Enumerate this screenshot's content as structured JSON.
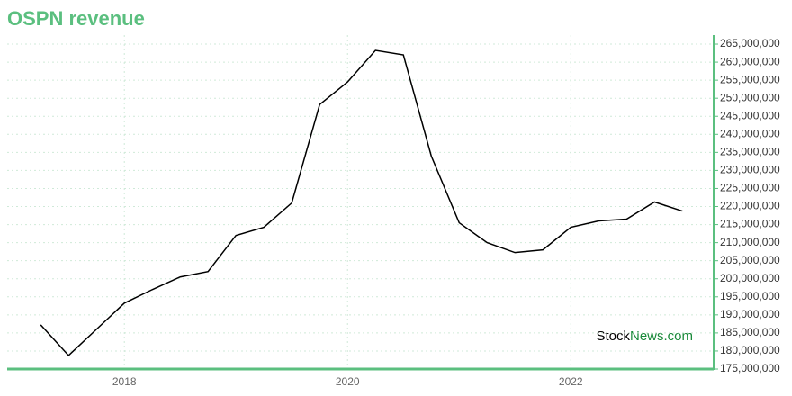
{
  "chart_data": {
    "type": "line",
    "title": "OSPN revenue",
    "x": [
      2017.25,
      2017.5,
      2017.75,
      2018.0,
      2018.25,
      2018.5,
      2018.75,
      2019.0,
      2019.25,
      2019.5,
      2019.75,
      2020.0,
      2020.25,
      2020.5,
      2020.75,
      2021.0,
      2021.25,
      2021.5,
      2021.75,
      2022.0,
      2022.25,
      2022.5,
      2022.75,
      2023.0
    ],
    "series": [
      {
        "name": "Revenue",
        "color": "#000000",
        "values": [
          187250000,
          178750000,
          186000000,
          193250000,
          197000000,
          200500000,
          202000000,
          212000000,
          214250000,
          221000000,
          248250000,
          254500000,
          263250000,
          262000000,
          234000000,
          215500000,
          210000000,
          207250000,
          208000000,
          214250000,
          216000000,
          216500000,
          221250000,
          218750000
        ]
      }
    ],
    "xlim": [
      2016.95,
      2023.28
    ],
    "xticks": [
      2018,
      2020,
      2022
    ],
    "ylim": [
      175000000,
      267500000
    ],
    "yticks": [
      {
        "value": 175000000,
        "label": "175,000,000"
      },
      {
        "value": 180000000,
        "label": "180,000,000"
      },
      {
        "value": 185000000,
        "label": "185,000,000"
      },
      {
        "value": 190000000,
        "label": "190,000,000"
      },
      {
        "value": 195000000,
        "label": "195,000,000"
      },
      {
        "value": 200000000,
        "label": "200,000,000"
      },
      {
        "value": 205000000,
        "label": "205,000,000"
      },
      {
        "value": 210000000,
        "label": "210,000,000"
      },
      {
        "value": 215000000,
        "label": "215,000,000"
      },
      {
        "value": 220000000,
        "label": "220,000,000"
      },
      {
        "value": 225000000,
        "label": "225,000,000"
      },
      {
        "value": 230000000,
        "label": "230,000,000"
      },
      {
        "value": 235000000,
        "label": "235,000,000"
      },
      {
        "value": 240000000,
        "label": "240,000,000"
      },
      {
        "value": 245000000,
        "label": "245,000,000"
      },
      {
        "value": 250000000,
        "label": "250,000,000"
      },
      {
        "value": 255000000,
        "label": "255,000,000"
      },
      {
        "value": 260000000,
        "label": "260,000,000"
      },
      {
        "value": 265000000,
        "label": "265,000,000"
      }
    ],
    "grid": true,
    "axis_color": "#5bbf7f",
    "watermark": [
      "Stock",
      "News.com"
    ]
  }
}
